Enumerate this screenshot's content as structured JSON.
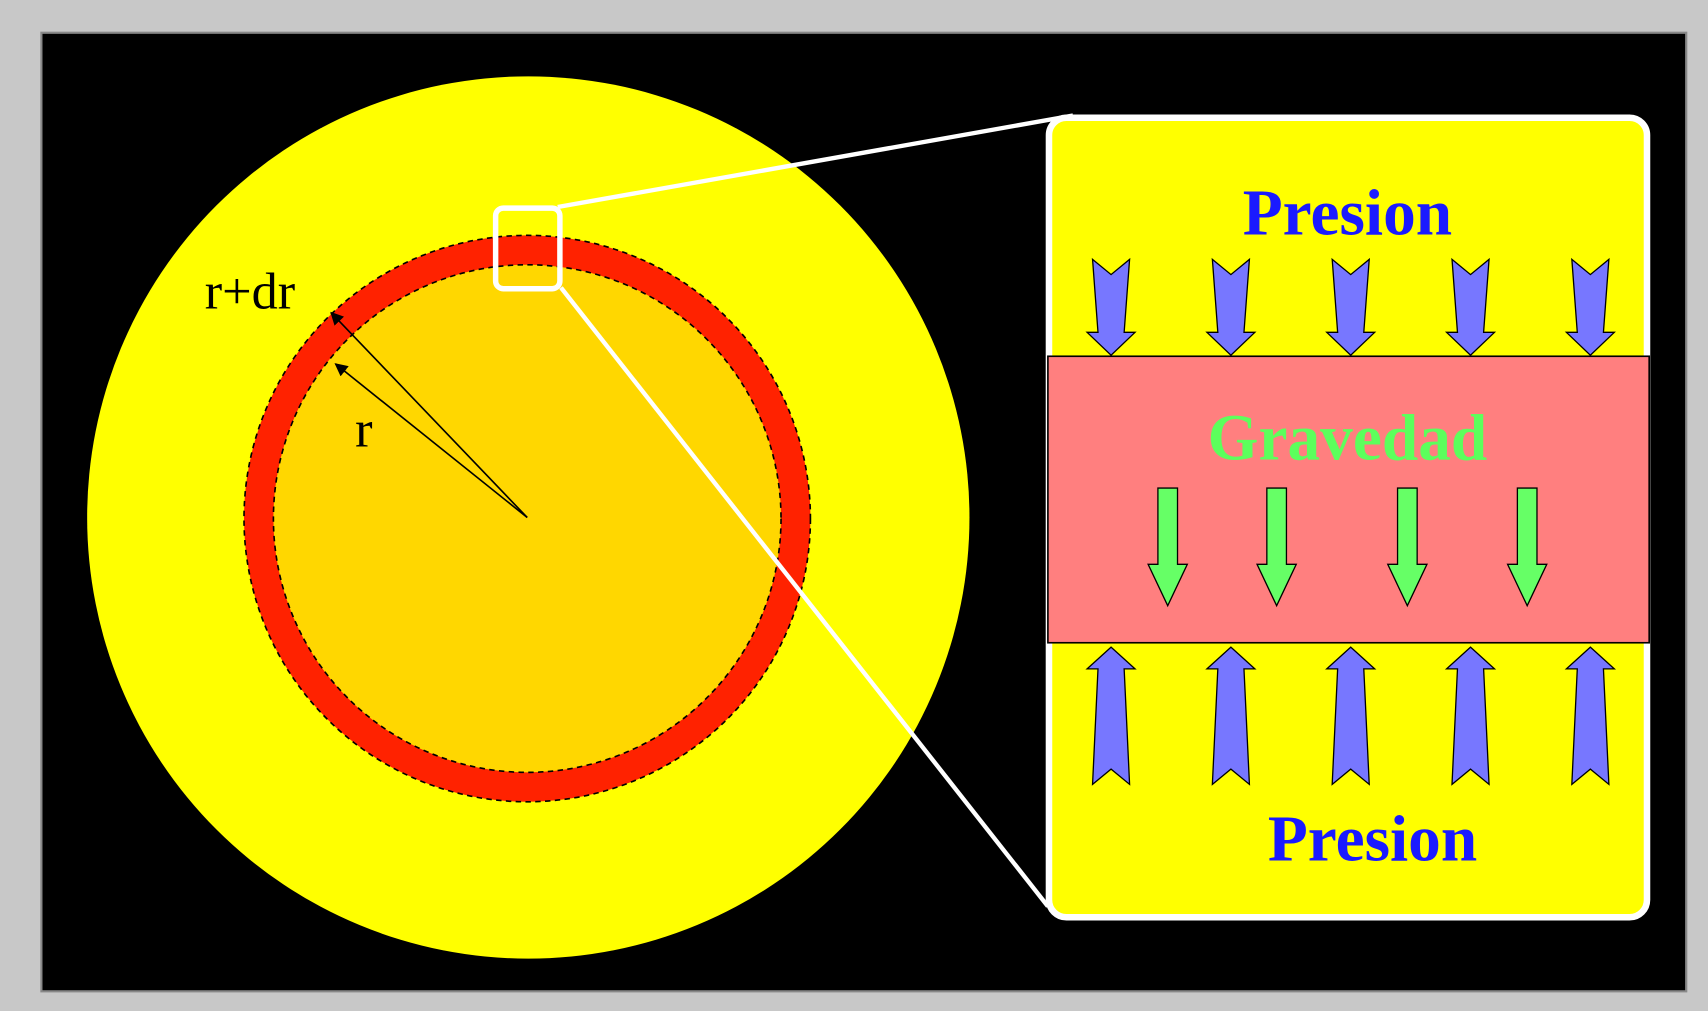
{
  "labels": {
    "outer_radius": "r+dr",
    "inner_radius": "r"
  },
  "zoom": {
    "top": "Presion",
    "middle": "Gravedad",
    "bottom": "Presion"
  }
}
